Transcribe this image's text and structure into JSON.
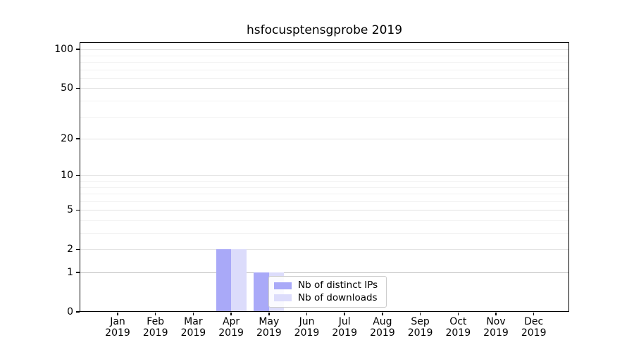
{
  "title": "hsfocusptensgprobe 2019",
  "legend": {
    "items": [
      {
        "label": "Nb of distinct IPs",
        "color": "#a9a9f8"
      },
      {
        "label": "Nb of downloads",
        "color": "#dcdcfb"
      }
    ]
  },
  "x_axis": {
    "months": [
      "Jan",
      "Feb",
      "Mar",
      "Apr",
      "May",
      "Jun",
      "Jul",
      "Aug",
      "Sep",
      "Oct",
      "Nov",
      "Dec"
    ],
    "year": "2019"
  },
  "y_axis": {
    "major_tick_labels": [
      "0",
      "1",
      "2",
      "5",
      "10",
      "20",
      "50",
      "100"
    ],
    "major_ticks": [
      0,
      1,
      2,
      5,
      10,
      20,
      50,
      100
    ],
    "minor_ticks": [
      3,
      4,
      6,
      7,
      8,
      9,
      30,
      40,
      60,
      70,
      80,
      90
    ]
  },
  "chart_data": {
    "type": "bar",
    "title": "hsfocusptensgprobe 2019",
    "categories": [
      "Jan 2019",
      "Feb 2019",
      "Mar 2019",
      "Apr 2019",
      "May 2019",
      "Jun 2019",
      "Jul 2019",
      "Aug 2019",
      "Sep 2019",
      "Oct 2019",
      "Nov 2019",
      "Dec 2019"
    ],
    "series": [
      {
        "name": "Nb of distinct IPs",
        "color": "#a9a9f8",
        "values": [
          0,
          0,
          0,
          2,
          1,
          0,
          0,
          0,
          0,
          0,
          0,
          0
        ]
      },
      {
        "name": "Nb of downloads",
        "color": "#dcdcfb",
        "values": [
          0,
          0,
          0,
          2,
          1,
          0,
          0,
          0,
          0,
          0,
          0,
          0
        ]
      }
    ],
    "yscale": "log1p",
    "ylim": [
      0,
      113
    ],
    "y_major_ticks": [
      0,
      1,
      2,
      5,
      10,
      20,
      50,
      100
    ],
    "y_minor_ticks": [
      3,
      4,
      6,
      7,
      8,
      9,
      30,
      40,
      60,
      70,
      80,
      90
    ],
    "grid": "horizontal",
    "legend_position": "inside lower-center-left"
  },
  "colors": {
    "grid_major": "#e3e3e3",
    "grid_minor": "#f2f2f2",
    "grid_unit_line": "#bcbcbc",
    "axis": "#000000",
    "background": "#ffffff",
    "text": "#000000"
  }
}
